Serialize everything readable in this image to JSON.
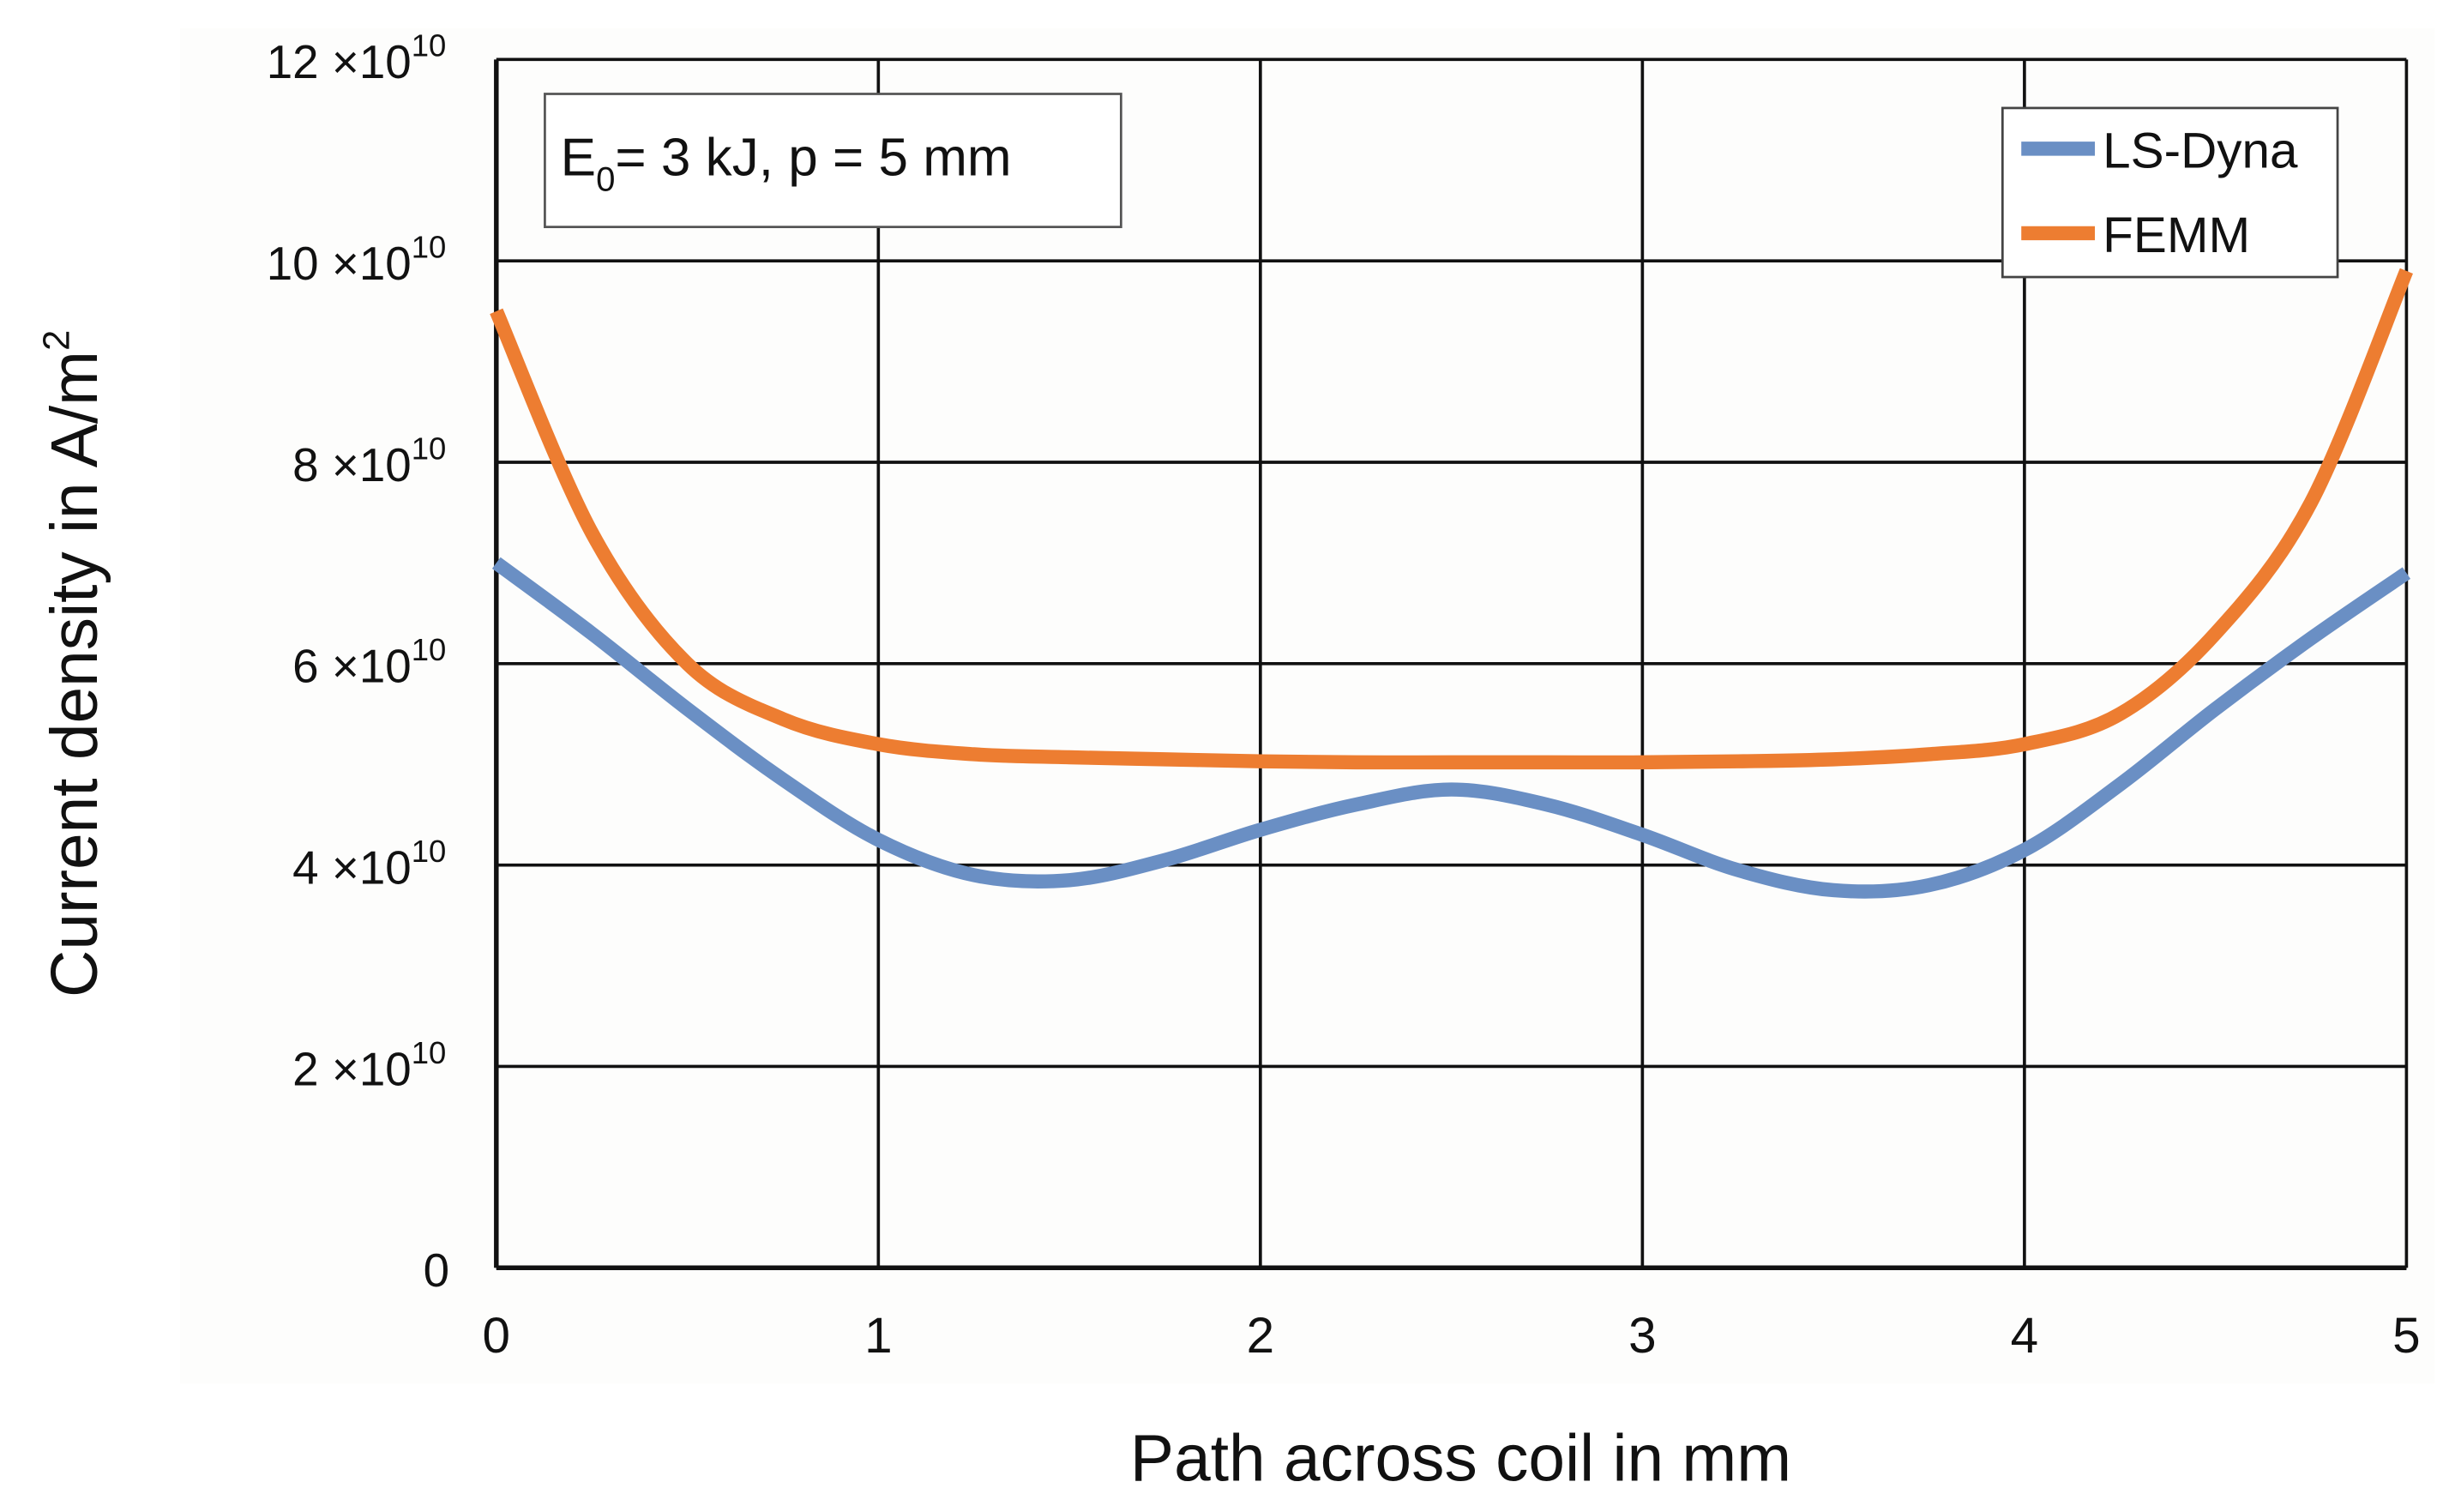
{
  "chart_data": {
    "type": "line",
    "title": "",
    "annotation": "E0 = 3 kJ, p = 5 mm",
    "xlabel": "Path across coil in mm",
    "ylabel": "Current density in A/m²",
    "xlim": [
      0,
      5
    ],
    "ylim": [
      0,
      120000000000.0
    ],
    "x_ticks": [
      "0",
      "1",
      "2",
      "3",
      "4",
      "5"
    ],
    "y_ticks": [
      "0",
      "2 ×10^10",
      "4 ×10^10",
      "6 ×10^10",
      "8 ×10^10",
      "10 ×10^10",
      "12 ×10^10"
    ],
    "grid": true,
    "legend_position": "top-right",
    "x": [
      0,
      0.25,
      0.5,
      0.75,
      1.0,
      1.25,
      1.5,
      1.75,
      2.0,
      2.25,
      2.5,
      2.75,
      3.0,
      3.25,
      3.5,
      3.75,
      4.0,
      4.25,
      4.5,
      4.75,
      5.0
    ],
    "series": [
      {
        "name": "LS-Dyna",
        "color": "#6a8fc4",
        "values": [
          7.0,
          6.3,
          5.55,
          4.85,
          4.25,
          3.9,
          3.85,
          4.05,
          4.35,
          4.6,
          4.75,
          4.6,
          4.3,
          3.95,
          3.75,
          3.8,
          4.15,
          4.8,
          5.55,
          6.25,
          6.9
        ]
      },
      {
        "name": "FEMM",
        "color": "#ed7d31",
        "values": [
          9.5,
          7.3,
          6.0,
          5.45,
          5.2,
          5.1,
          5.07,
          5.05,
          5.03,
          5.02,
          5.02,
          5.02,
          5.02,
          5.03,
          5.05,
          5.1,
          5.2,
          5.5,
          6.3,
          7.6,
          9.9
        ]
      }
    ],
    "value_unit_multiplier": 10000000000.0
  },
  "labels": {
    "y_tick_mantissas": [
      "0",
      "2",
      "4",
      "6",
      "8",
      "10",
      "12"
    ],
    "y_tick_exp_base": "×10",
    "y_tick_exp": "10",
    "x_ticks": [
      "0",
      "1",
      "2",
      "3",
      "4",
      "5"
    ],
    "xlabel": "Path across coil in mm",
    "ylabel_main": "Current density in A/m",
    "ylabel_sup": "2",
    "annot_E": "E",
    "annot_sub": "0",
    "annot_rest": "= 3 kJ, p = 5 mm",
    "legend_1": "LS-Dyna",
    "legend_2": "FEMM"
  }
}
